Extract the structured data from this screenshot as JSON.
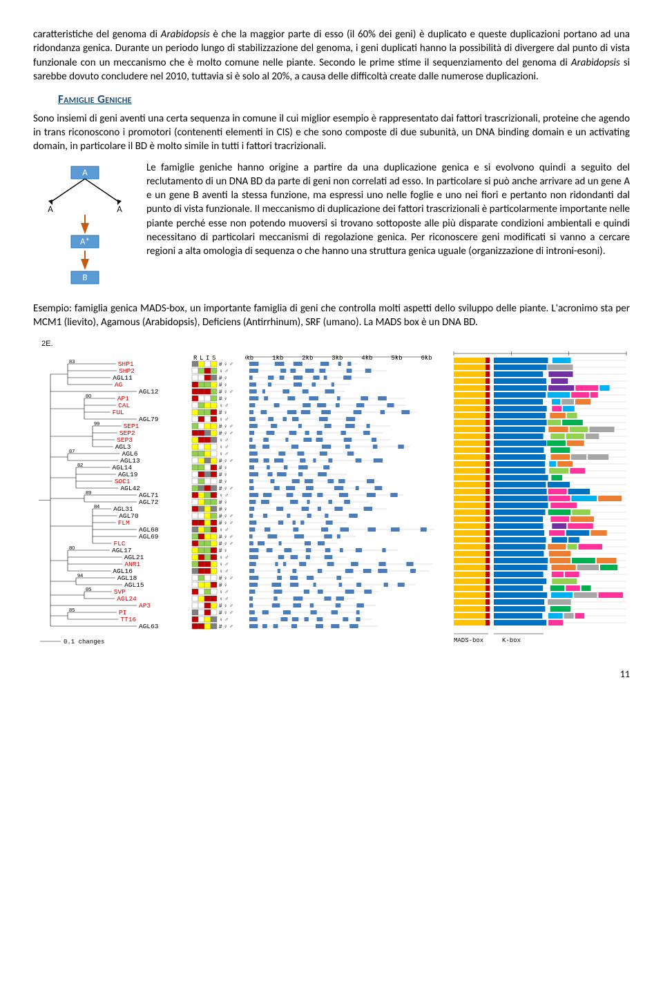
{
  "para1": {
    "pre": "caratteristiche del genoma di ",
    "italic": "Arabidopsis",
    "post": " è che la maggior parte di esso (il 60% dei geni) è duplicato e queste duplicazioni portano ad una ridondanza genica. Durante un periodo lungo di stabilizzazione del genoma, i geni duplicati hanno la possibilità di divergere dal punto di vista funzionale con un meccanismo che è molto comune nelle piante. Secondo le prime stime il sequenziamento del genoma di ",
    "italic2": "Arabidopsis",
    "post2": " si sarebbe dovuto concludere nel 2010, tuttavia si è solo al 20%, a causa delle difficoltà create dalle numerose duplicazioni."
  },
  "heading": "Famiglie Geniche",
  "para2": "Sono insiemi di geni aventi una certa sequenza in comune il cui miglior esempio è rappresentato dai fattori trascrizionali, proteine che agendo in trans riconoscono i promotori (contenenti elementi in CIS) e che sono composte di due subunità, un DNA binding domain e un activating domain, in particolare il BD è molto simile in tutti i fattori tracrizionali.",
  "para3": "Le famiglie geniche hanno origine a partire da una duplicazione genica e si evolvono quindi a seguito del reclutamento di un DNA BD da parte di geni non correlati ad esso. In particolare si può anche arrivare ad un gene A e un gene B aventi la stessa funzione, ma espressi uno nelle foglie e uno nei fiori e pertanto non ridondanti dal punto di vista funzionale. Il meccanismo di duplicazione dei fattori trascrizionali è particolarmente importante nelle piante perché esse non potendo muoversi si trovano sottoposte alle più disparate condizioni ambientali e quindi necessitano di particolari meccanismi di regolazione genica. Per riconoscere geni modificati si vanno a cercare regioni a alta omologia di sequenza o che hanno una struttura genica uguale (organizzazione di introni-esoni).",
  "para4": "Esempio: famiglia genica MADS-box, un importante famiglia di geni che controlla molti aspetti dello sviluppo delle piante. L'acronimo sta per MCM1 (lievito), Agamous (Arabidopsis), Deficiens (Antirrhinum), SRF (umano). La MADS box è un DNA BD.",
  "evo": {
    "A": "A",
    "Astar": "A*",
    "B": "B"
  },
  "fig": {
    "label": "2E.",
    "genes": [
      {
        "n": "SHP1",
        "c": "r"
      },
      {
        "n": "SHP2",
        "c": "r"
      },
      {
        "n": "AGL11",
        "c": "b"
      },
      {
        "n": "AG",
        "c": "r"
      },
      {
        "n": "AGL12",
        "c": "b",
        "out": true
      },
      {
        "n": "AP1",
        "c": "r"
      },
      {
        "n": "CAL",
        "c": "r"
      },
      {
        "n": "FUL",
        "c": "r"
      },
      {
        "n": "AGL79",
        "c": "b",
        "out": true
      },
      {
        "n": "SEP1",
        "c": "r"
      },
      {
        "n": "SEP2",
        "c": "r"
      },
      {
        "n": "SEP3",
        "c": "r"
      },
      {
        "n": "AGL3",
        "c": "b"
      },
      {
        "n": "AGL6",
        "c": "b"
      },
      {
        "n": "AGL13",
        "c": "b"
      },
      {
        "n": "AGL14",
        "c": "b"
      },
      {
        "n": "AGL19",
        "c": "b"
      },
      {
        "n": "SOC1",
        "c": "r"
      },
      {
        "n": "AGL42",
        "c": "b"
      },
      {
        "n": "AGL71",
        "c": "b",
        "out": true
      },
      {
        "n": "AGL72",
        "c": "b",
        "out": true
      },
      {
        "n": "AGL31",
        "c": "b"
      },
      {
        "n": "AGL70",
        "c": "b"
      },
      {
        "n": "FLM",
        "c": "r"
      },
      {
        "n": "AGL68",
        "c": "b",
        "out": true
      },
      {
        "n": "AGL69",
        "c": "b",
        "out": true
      },
      {
        "n": "FLC",
        "c": "r"
      },
      {
        "n": "AGL17",
        "c": "b"
      },
      {
        "n": "AGL21",
        "c": "b"
      },
      {
        "n": "ANR1",
        "c": "r"
      },
      {
        "n": "AGL16",
        "c": "b"
      },
      {
        "n": "AGL18",
        "c": "b"
      },
      {
        "n": "AGL15",
        "c": "b"
      },
      {
        "n": "SVP",
        "c": "r"
      },
      {
        "n": "AGL24",
        "c": "r"
      },
      {
        "n": "AP3",
        "c": "r",
        "out": true
      },
      {
        "n": "PI",
        "c": "r"
      },
      {
        "n": "TT16",
        "c": "r"
      },
      {
        "n": "AGL63",
        "c": "b",
        "out": true
      }
    ],
    "rlis_header": [
      "R",
      "L",
      "I",
      "S"
    ],
    "rlis_colors": [
      "#c00000",
      "#92d050",
      "#ffff00",
      "#ffffff",
      "#808080"
    ],
    "exon_ticks": [
      "0kb",
      "1kb",
      "2kb",
      "3kb",
      "4kb",
      "5kb",
      "6kb"
    ],
    "domain_ticks": [
      "0",
      "100",
      "200",
      "30"
    ],
    "domain_labels": [
      "MADS-box",
      "K-box"
    ],
    "domain_palette": [
      "#ffc000",
      "#c00000",
      "#0070c0",
      "#00b050",
      "#7030a0",
      "#ff3399",
      "#00b0f0",
      "#92d050",
      "#a6a6a6",
      "#ed7d31"
    ],
    "scale_label": "0.1 changes"
  },
  "page_number": "11"
}
